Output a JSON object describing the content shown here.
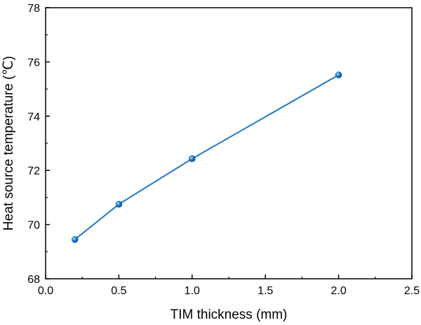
{
  "chart_data": {
    "type": "line",
    "xlabel": "TIM thickness (mm)",
    "ylabel": "Heat source temperature (℃)",
    "xlim": [
      0.0,
      2.5
    ],
    "ylim": [
      68,
      78
    ],
    "xticks": [
      0.0,
      0.5,
      1.0,
      1.5,
      2.0,
      2.5
    ],
    "xtick_labels": [
      "0.0",
      "0.5",
      "1.0",
      "1.5",
      "2.0",
      "2.5"
    ],
    "yticks": [
      68,
      70,
      72,
      74,
      76,
      78
    ],
    "ytick_labels": [
      "68",
      "70",
      "72",
      "74",
      "76",
      "78"
    ],
    "grid": false,
    "series": [
      {
        "name": "Heat source temperature",
        "color": "#1f77c4",
        "marker_color": "#2e86d1",
        "x": [
          0.2,
          0.5,
          1.0,
          2.0
        ],
        "values": [
          69.45,
          70.75,
          72.43,
          75.52
        ]
      }
    ]
  }
}
